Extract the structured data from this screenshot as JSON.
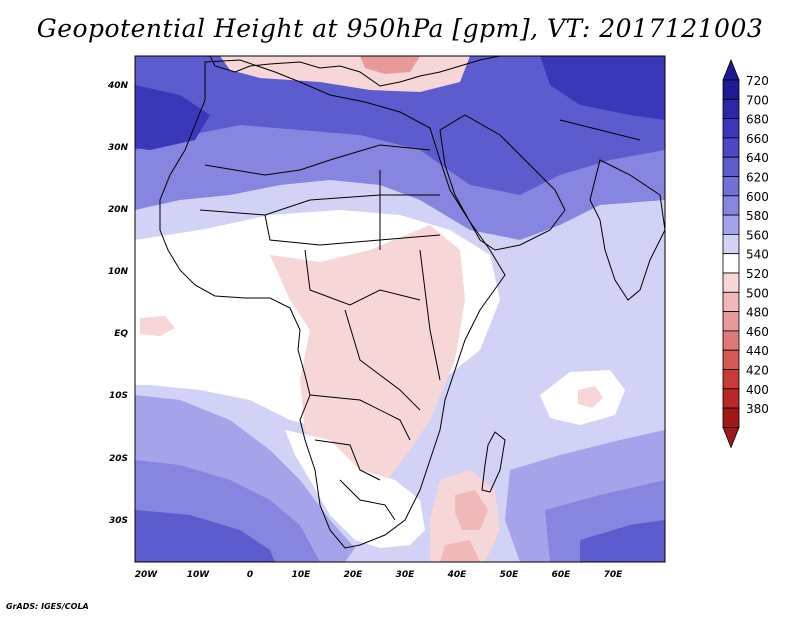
{
  "title": "Geopotential Height at 950hPa [gpm], VT: 2017121003",
  "credit": "GrADS: IGES/COLA",
  "chart_data": {
    "type": "heatmap",
    "variable": "Geopotential Height",
    "level": "950hPa",
    "units": "gpm",
    "valid_time": "2017121003",
    "lon_range": [
      -25,
      80
    ],
    "lat_range": [
      -37,
      45
    ],
    "lat_ticks": [
      "40N",
      "30N",
      "20N",
      "10N",
      "EQ",
      "10S",
      "20S",
      "30S"
    ],
    "lat_values": [
      40,
      30,
      20,
      10,
      0,
      -10,
      -20,
      -30
    ],
    "lon_ticks": [
      "20W",
      "10W",
      "0",
      "10E",
      "20E",
      "30E",
      "40E",
      "50E",
      "60E",
      "70E"
    ],
    "lon_values": [
      -20,
      -10,
      0,
      10,
      20,
      30,
      40,
      50,
      60,
      70
    ],
    "colorbar": {
      "levels": [
        "720",
        "700",
        "680",
        "660",
        "640",
        "620",
        "600",
        "580",
        "560",
        "540",
        "520",
        "500",
        "480",
        "460",
        "440",
        "420",
        "400",
        "380"
      ],
      "colors": [
        "#1e1a96",
        "#2b28a8",
        "#3a37b8",
        "#4a48c4",
        "#5d5ccf",
        "#7170d8",
        "#8685e0",
        "#a5a4ea",
        "#d2d2f6",
        "#ffffff",
        "#f6d6d6",
        "#f0b8b8",
        "#e89a9a",
        "#e07878",
        "#d85858",
        "#c93a3a",
        "#b82828",
        "#a01818"
      ],
      "top_arrow_color": "#1e1a96",
      "bottom_arrow_color": "#a01818"
    }
  }
}
